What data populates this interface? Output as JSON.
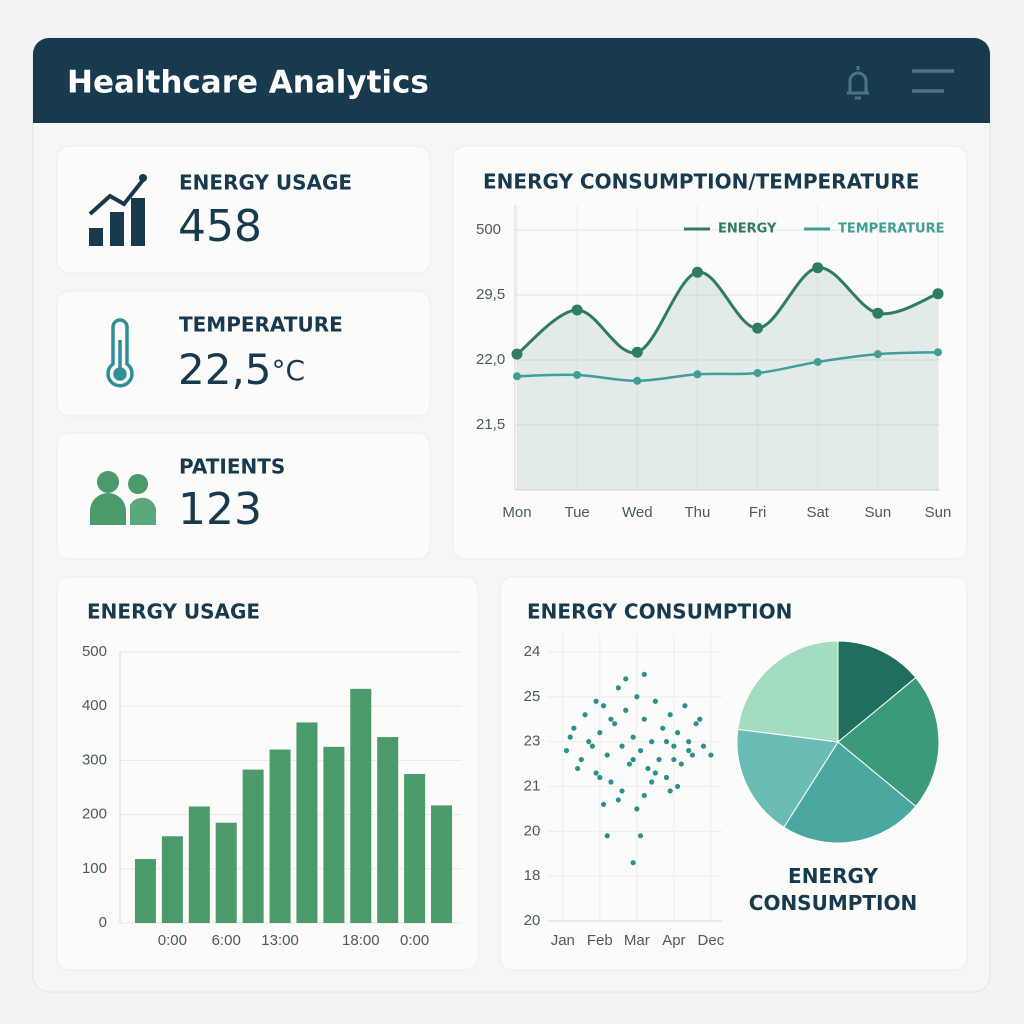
{
  "header": {
    "title": "Healthcare Analytics"
  },
  "kpis": [
    {
      "label": "ENERGY USAGE",
      "value": "458"
    },
    {
      "label": "TEMPERATURE",
      "value": "22,5",
      "unit": "°C"
    },
    {
      "label": "PATIENTS",
      "value": "123"
    }
  ],
  "chart_data": [
    {
      "type": "line",
      "title": "ENERGY CONSUMPTION/TEMPERATURE",
      "categories": [
        "Mon",
        "Tue",
        "Wed",
        "Thu",
        "Fri",
        "Sat",
        "Sun",
        "Sun"
      ],
      "y_labels": [
        "21,5",
        "22,0",
        "29,5",
        "500"
      ],
      "ylim": [
        0,
        4
      ],
      "series": [
        {
          "name": "ENERGY",
          "color": "#2f7d5f",
          "values": [
            2.09,
            2.77,
            2.12,
            3.35,
            2.49,
            3.42,
            2.72,
            3.02
          ]
        },
        {
          "name": "TEMPERATURE",
          "color": "#3f9e98",
          "values": [
            1.75,
            1.77,
            1.68,
            1.78,
            1.8,
            1.97,
            2.09,
            2.12
          ]
        }
      ],
      "grid": true,
      "legend": "top-right"
    },
    {
      "type": "bar",
      "title": "ENERGY USAGE",
      "categories": [
        null,
        "0:00",
        null,
        "6:00",
        null,
        "13:00",
        null,
        null,
        "18:00",
        null,
        "0:00",
        null
      ],
      "values": [
        118,
        160,
        215,
        185,
        283,
        320,
        370,
        325,
        432,
        343,
        275,
        217
      ],
      "color": "#4a9a6a",
      "ylim": [
        0,
        500
      ],
      "yticks": [
        0,
        100,
        200,
        300,
        400,
        500
      ],
      "grid": true
    },
    {
      "type": "scatter",
      "title": "ENERGY CONSUMPTION",
      "categories": [
        "Jan",
        "Feb",
        "Mar",
        "Apr",
        "Dec"
      ],
      "y_labels": [
        "20",
        "18",
        "20",
        "21",
        "23",
        "25",
        "24"
      ],
      "xlim": [
        -0.4,
        4.3
      ],
      "ylim": [
        0,
        6.4
      ],
      "x": [
        0.1,
        0.3,
        0.5,
        0.6,
        0.8,
        0.9,
        1.0,
        1.1,
        1.2,
        1.3,
        1.4,
        1.5,
        1.6,
        1.7,
        1.8,
        1.9,
        2.0,
        2.1,
        2.2,
        2.3,
        2.4,
        2.5,
        2.6,
        2.7,
        2.8,
        2.9,
        3.0,
        3.1,
        3.2,
        3.3,
        3.4,
        3.5,
        3.6,
        3.8,
        4.0,
        0.2,
        0.4,
        0.7,
        1.0,
        1.3,
        1.6,
        1.9,
        2.2,
        2.5,
        2.8,
        3.1,
        3.4,
        3.7,
        1.1,
        1.5,
        2.0,
        2.4,
        2.9,
        1.7,
        2.2,
        1.2,
        2.1,
        1.9,
        0.9,
        3.0
      ],
      "y": [
        3.8,
        4.3,
        3.6,
        4.6,
        3.9,
        3.3,
        4.2,
        4.8,
        3.7,
        3.1,
        4.4,
        5.2,
        3.9,
        4.7,
        3.5,
        4.1,
        5.0,
        3.8,
        4.5,
        3.4,
        4.0,
        4.9,
        3.6,
        4.3,
        3.2,
        4.6,
        3.9,
        4.2,
        3.5,
        4.8,
        4.0,
        3.7,
        4.4,
        3.9,
        3.7,
        4.1,
        3.4,
        4.0,
        3.2,
        4.5,
        2.9,
        3.6,
        2.8,
        3.3,
        4.0,
        3.0,
        3.8,
        4.5,
        2.6,
        2.7,
        2.5,
        3.1,
        2.9,
        5.4,
        5.5,
        1.9,
        1.9,
        1.3,
        4.9,
        3.6
      ],
      "color": "#2e8f8f",
      "grid": true
    },
    {
      "type": "pie",
      "title": "ENERGY CONSUMPTION",
      "values": [
        14,
        22,
        23,
        18,
        23
      ],
      "colors": [
        "#1f6e5e",
        "#3c9a7c",
        "#4aa8a0",
        "#6cbcb6",
        "#a4dcc0"
      ]
    }
  ]
}
